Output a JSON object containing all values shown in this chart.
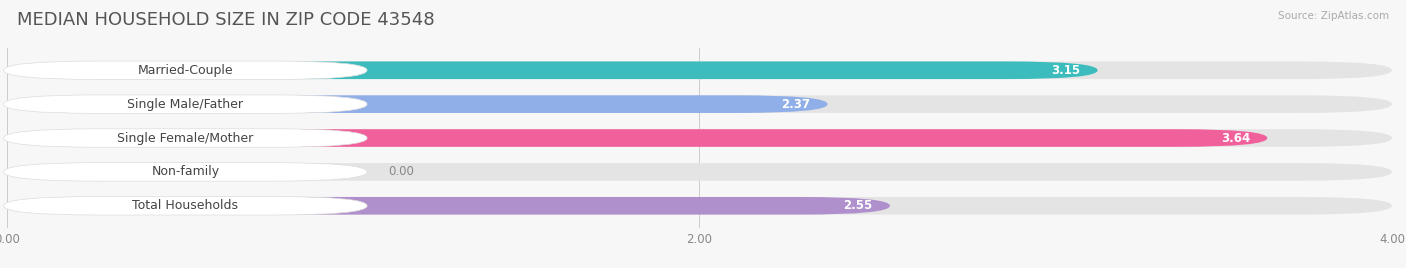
{
  "title": "MEDIAN HOUSEHOLD SIZE IN ZIP CODE 43548",
  "source": "Source: ZipAtlas.com",
  "categories": [
    "Married-Couple",
    "Single Male/Father",
    "Single Female/Mother",
    "Non-family",
    "Total Households"
  ],
  "values": [
    3.15,
    2.37,
    3.64,
    0.0,
    2.55
  ],
  "bar_colors": [
    "#3cbcbc",
    "#90aee8",
    "#f0609a",
    "#f5c896",
    "#b090cc"
  ],
  "xlim": [
    0,
    4.0
  ],
  "xticks": [
    0.0,
    2.0,
    4.0
  ],
  "xtick_labels": [
    "0.00",
    "2.00",
    "4.00"
  ],
  "background_color": "#f7f7f7",
  "bar_bg_color": "#e4e4e4",
  "title_fontsize": 13,
  "label_fontsize": 9,
  "value_fontsize": 8.5,
  "bar_height": 0.52
}
